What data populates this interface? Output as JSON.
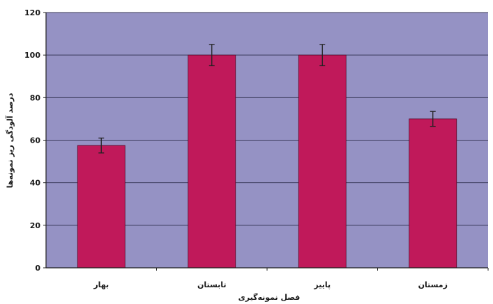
{
  "chart_data": {
    "type": "bar",
    "categories": [
      "بهار",
      "تابستان",
      "پاییز",
      "زمستان"
    ],
    "values": [
      57.5,
      100,
      100,
      70
    ],
    "error": [
      3.5,
      5,
      5,
      3.5
    ],
    "xlabel": "فصل نمونه‌گیری",
    "ylabel": "درصد آلودگی ریز نمونه‌ها",
    "ylim": [
      0,
      120
    ],
    "yticks": [
      0,
      20,
      40,
      60,
      80,
      100,
      120
    ],
    "grid": true,
    "colors": {
      "bar": "#c0195a",
      "plot_background": "#9592c4",
      "gridline": "#3a3a5a",
      "error_bar": "#222222"
    }
  }
}
